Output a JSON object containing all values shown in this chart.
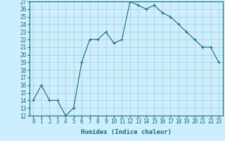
{
  "xlabel": "Humidex (Indice chaleur)",
  "x": [
    0,
    1,
    2,
    3,
    4,
    5,
    6,
    7,
    8,
    9,
    10,
    11,
    12,
    13,
    14,
    15,
    16,
    17,
    18,
    19,
    20,
    21,
    22,
    23
  ],
  "y": [
    14,
    16,
    14,
    14,
    12,
    13,
    19,
    22,
    22,
    23,
    21.5,
    22,
    27,
    26.5,
    26,
    26.5,
    25.5,
    25,
    24,
    23,
    22,
    21,
    21,
    19
  ],
  "ylim": [
    12,
    27
  ],
  "xlim": [
    -0.5,
    23.5
  ],
  "yticks": [
    12,
    13,
    14,
    15,
    16,
    17,
    18,
    19,
    20,
    21,
    22,
    23,
    24,
    25,
    26,
    27
  ],
  "xticks": [
    0,
    1,
    2,
    3,
    4,
    5,
    6,
    7,
    8,
    9,
    10,
    11,
    12,
    13,
    14,
    15,
    16,
    17,
    18,
    19,
    20,
    21,
    22,
    23
  ],
  "line_color": "#1a6b6b",
  "marker_color": "#1a6b6b",
  "bg_color": "#cceeff",
  "grid_color": "#aacccc",
  "label_color": "#1a6b6b",
  "tick_color": "#1a6b6b",
  "spine_color": "#1a6b6b",
  "label_fontsize": 6.5,
  "tick_fontsize": 5.5
}
